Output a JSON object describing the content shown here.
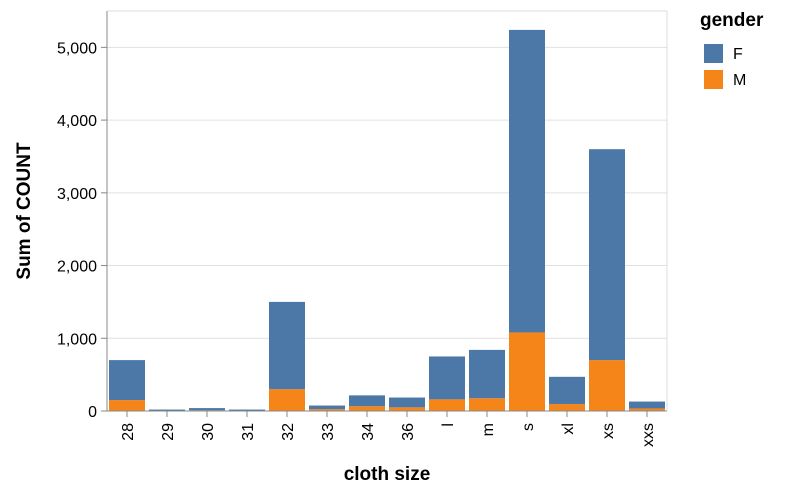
{
  "chart_data": {
    "type": "bar",
    "stacked": true,
    "categories": [
      "28",
      "29",
      "30",
      "31",
      "32",
      "33",
      "34",
      "36",
      "l",
      "m",
      "s",
      "xl",
      "xs",
      "xxs"
    ],
    "series": [
      {
        "name": "M",
        "color": "#f58518",
        "values": [
          150,
          5,
          10,
          5,
          300,
          25,
          65,
          50,
          160,
          175,
          1080,
          95,
          700,
          35
        ]
      },
      {
        "name": "F",
        "color": "#4c78a8",
        "values": [
          550,
          15,
          30,
          15,
          1200,
          50,
          150,
          135,
          590,
          665,
          4160,
          375,
          2900,
          95
        ]
      }
    ],
    "xlabel": "cloth size",
    "ylabel": "Sum of COUNT",
    "ylim": [
      0,
      5500
    ],
    "yticks": [
      0,
      1000,
      2000,
      3000,
      4000,
      5000
    ],
    "ytick_labels": [
      "0",
      "1,000",
      "2,000",
      "3,000",
      "4,000",
      "5,000"
    ],
    "grid": true,
    "legend": {
      "title": "gender",
      "placement": "top-right",
      "entries": [
        {
          "label": "F",
          "color": "#4c78a8"
        },
        {
          "label": "M",
          "color": "#f58518"
        }
      ]
    }
  }
}
